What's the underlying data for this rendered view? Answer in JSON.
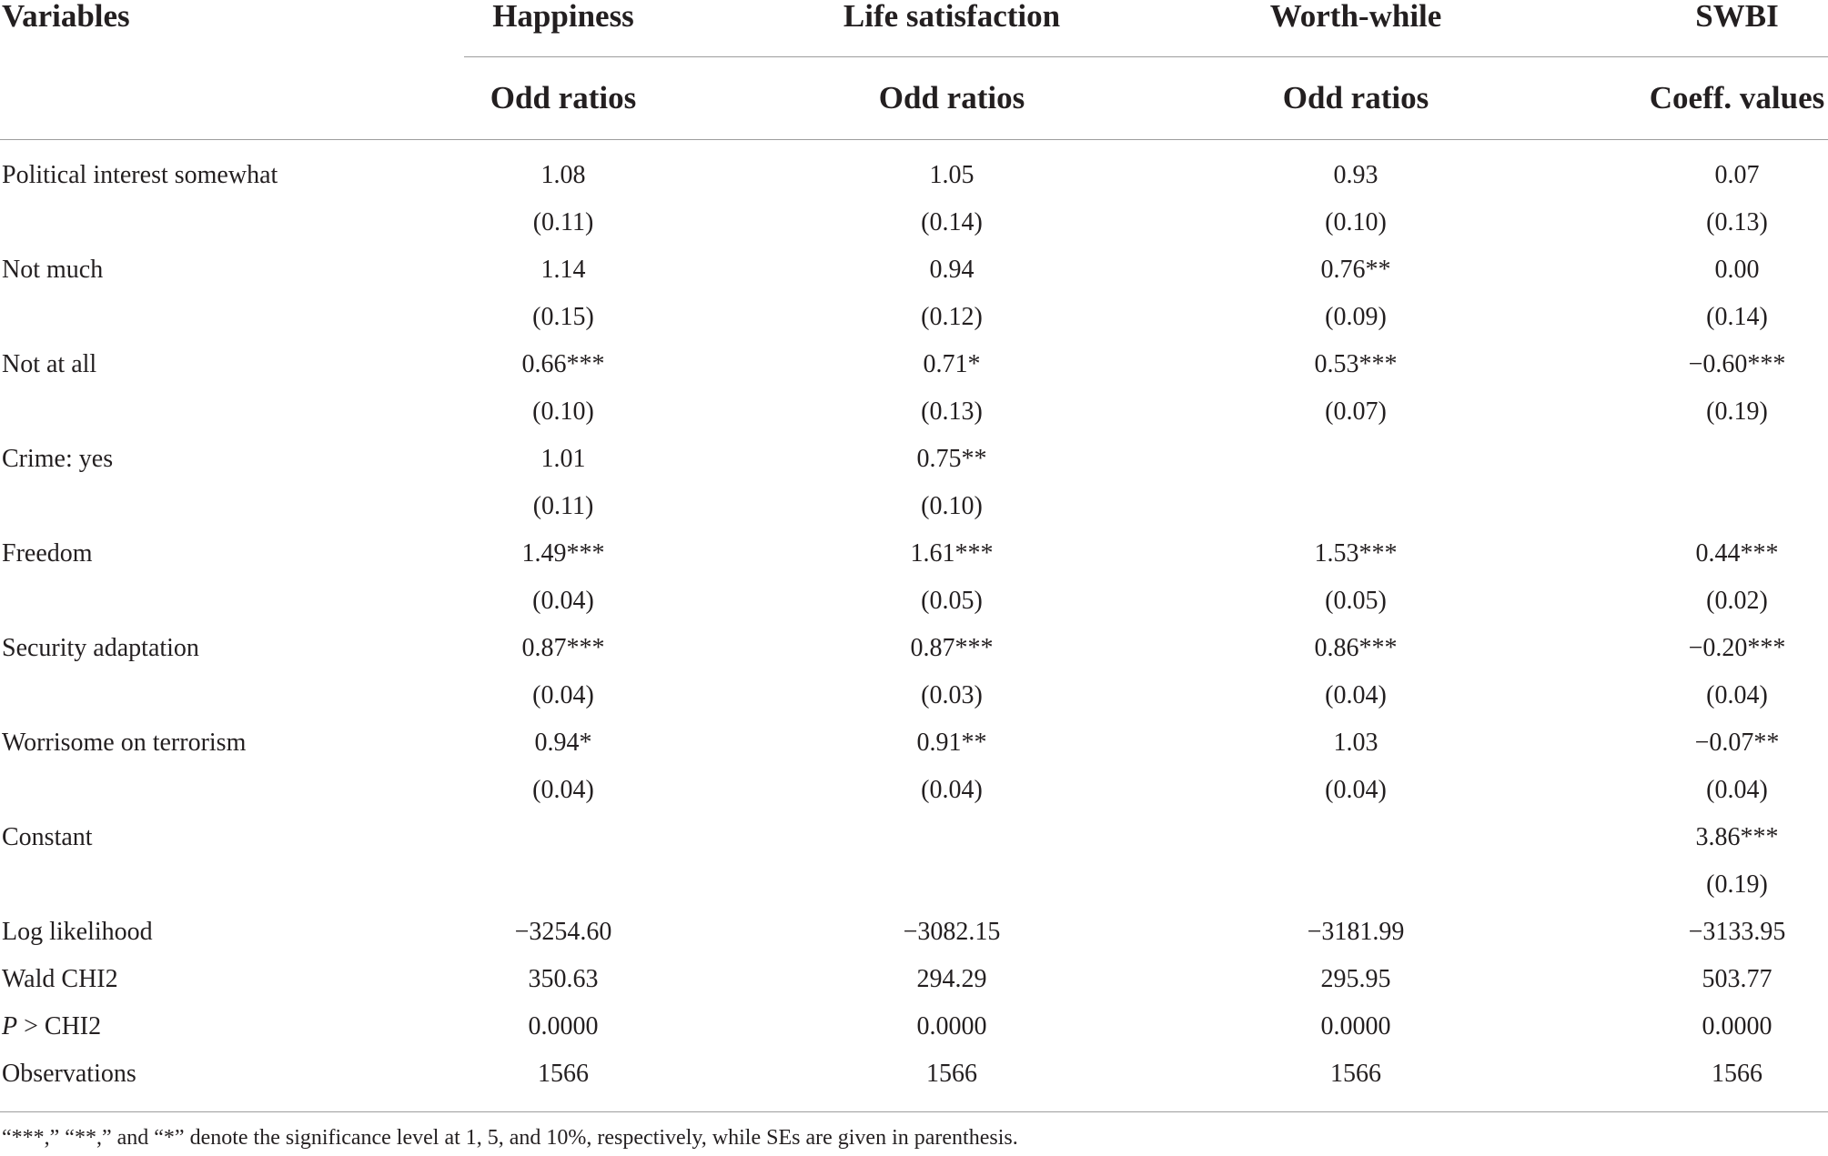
{
  "table": {
    "header": {
      "variables_label": "Variables",
      "columns": [
        {
          "title": "Happiness",
          "subtitle": "Odd ratios"
        },
        {
          "title": "Life satisfaction",
          "subtitle": "Odd ratios"
        },
        {
          "title": "Worth-while",
          "subtitle": "Odd ratios"
        },
        {
          "title": "SWBI",
          "subtitle": "Coeff. values"
        }
      ]
    },
    "rows": [
      {
        "label": "Political interest somewhat",
        "values": [
          "1.08",
          "1.05",
          "0.93",
          "0.07"
        ]
      },
      {
        "label": "",
        "values": [
          "(0.11)",
          "(0.14)",
          "(0.10)",
          "(0.13)"
        ]
      },
      {
        "label": "Not much",
        "values": [
          "1.14",
          "0.94",
          "0.76**",
          "0.00"
        ]
      },
      {
        "label": "",
        "values": [
          "(0.15)",
          "(0.12)",
          "(0.09)",
          "(0.14)"
        ]
      },
      {
        "label": "Not at all",
        "values": [
          "0.66***",
          "0.71*",
          "0.53***",
          "−0.60***"
        ]
      },
      {
        "label": "",
        "values": [
          "(0.10)",
          "(0.13)",
          "(0.07)",
          "(0.19)"
        ]
      },
      {
        "label": "Crime: yes",
        "values": [
          "1.01",
          "0.75**",
          "",
          ""
        ]
      },
      {
        "label": "",
        "values": [
          "(0.11)",
          "(0.10)",
          "",
          ""
        ]
      },
      {
        "label": "Freedom",
        "values": [
          "1.49***",
          "1.61***",
          "1.53***",
          "0.44***"
        ]
      },
      {
        "label": "",
        "values": [
          "(0.04)",
          "(0.05)",
          "(0.05)",
          "(0.02)"
        ]
      },
      {
        "label": "Security adaptation",
        "values": [
          "0.87***",
          "0.87***",
          "0.86***",
          "−0.20***"
        ]
      },
      {
        "label": "",
        "values": [
          "(0.04)",
          "(0.03)",
          "(0.04)",
          "(0.04)"
        ]
      },
      {
        "label": "Worrisome on terrorism",
        "values": [
          "0.94*",
          "0.91**",
          "1.03",
          "−0.07**"
        ]
      },
      {
        "label": "",
        "values": [
          "(0.04)",
          "(0.04)",
          "(0.04)",
          "(0.04)"
        ]
      },
      {
        "label": "Constant",
        "values": [
          "",
          "",
          "",
          "3.86***"
        ]
      },
      {
        "label": "",
        "values": [
          "",
          "",
          "",
          "(0.19)"
        ]
      },
      {
        "label": "Log likelihood",
        "values": [
          "−3254.60",
          "−3082.15",
          "−3181.99",
          "−3133.95"
        ]
      },
      {
        "label": "Wald CHI2",
        "values": [
          "350.63",
          "294.29",
          "295.95",
          "503.77"
        ]
      },
      {
        "label_italic": "P",
        "label": " > CHI2",
        "values": [
          "0.0000",
          "0.0000",
          "0.0000",
          "0.0000"
        ]
      },
      {
        "label": "Observations",
        "values": [
          "1566",
          "1566",
          "1566",
          "1566"
        ]
      }
    ],
    "footnote": "“***,” “**,” and “*” denote the significance level at 1, 5, and 10%, respectively, while SEs are given in parenthesis."
  }
}
